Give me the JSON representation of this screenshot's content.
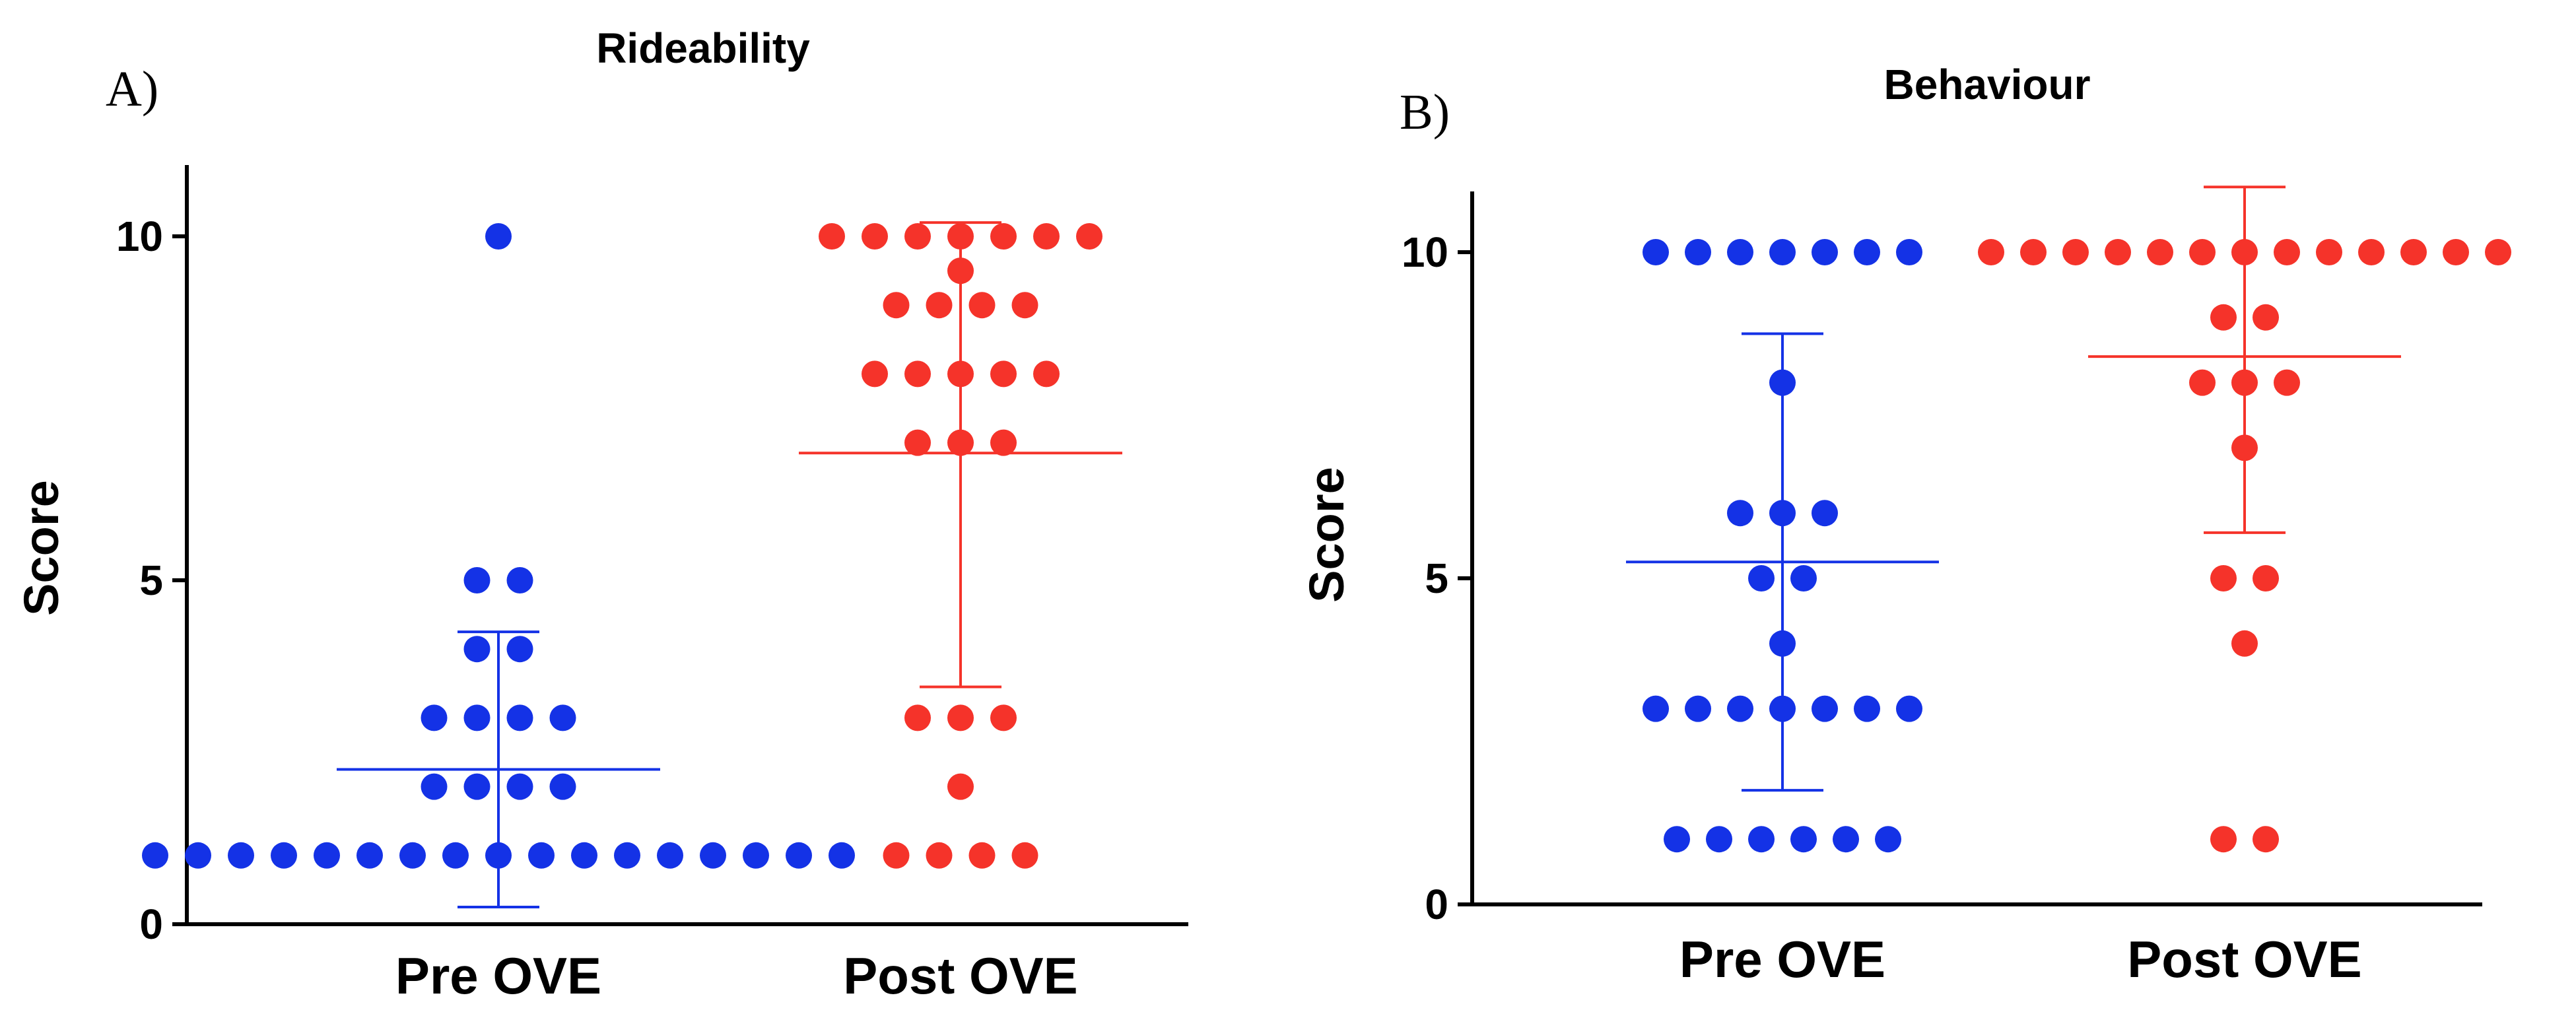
{
  "chart_data": [
    {
      "type": "scatter",
      "panel_label": "A)",
      "title": "Rideability",
      "xlabel": "",
      "ylabel": "Score",
      "ylim": [
        0,
        11
      ],
      "yticks": [
        "0",
        "5",
        "10"
      ],
      "categories": [
        "Pre OVE",
        "Post OVE"
      ],
      "series": [
        {
          "name": "Pre OVE",
          "color": "#1432e6",
          "values": [
            10,
            5,
            5,
            4,
            4,
            3,
            3,
            3,
            3,
            2,
            2,
            2,
            2,
            1,
            1,
            1,
            1,
            1,
            1,
            1,
            1,
            1,
            1,
            1,
            1,
            1,
            1,
            1,
            1,
            1
          ],
          "mean": 2.25,
          "sd_low": 0.25,
          "sd_high": 4.25
        },
        {
          "name": "Post OVE",
          "color": "#f5332a",
          "values": [
            10,
            10,
            10,
            10,
            10,
            10,
            10,
            9.5,
            9,
            9,
            9,
            9,
            8,
            8,
            8,
            8,
            8,
            7,
            7,
            7,
            3,
            3,
            3,
            2,
            1,
            1,
            1,
            1
          ],
          "mean": 6.85,
          "sd_low": 3.45,
          "sd_high": 10.2
        }
      ]
    },
    {
      "type": "scatter",
      "panel_label": "B)",
      "title": "Behaviour",
      "xlabel": "",
      "ylabel": "Score",
      "ylim": [
        0,
        11
      ],
      "yticks": [
        "0",
        "5",
        "10"
      ],
      "categories": [
        "Pre OVE",
        "Post OVE"
      ],
      "series": [
        {
          "name": "Pre OVE",
          "color": "#1432e6",
          "values": [
            10,
            10,
            10,
            10,
            10,
            10,
            10,
            8,
            6,
            6,
            6,
            5,
            5,
            4,
            3,
            3,
            3,
            3,
            3,
            3,
            3,
            1,
            1,
            1,
            1,
            1,
            1
          ],
          "mean": 5.25,
          "sd_low": 1.75,
          "sd_high": 8.75
        },
        {
          "name": "Post OVE",
          "color": "#f5332a",
          "values": [
            10,
            10,
            10,
            10,
            10,
            10,
            10,
            10,
            10,
            10,
            10,
            10,
            10,
            9,
            9,
            8,
            8,
            8,
            7,
            5,
            5,
            4,
            1,
            1
          ],
          "mean": 8.4,
          "sd_low": 5.7,
          "sd_high": 11
        }
      ]
    }
  ]
}
